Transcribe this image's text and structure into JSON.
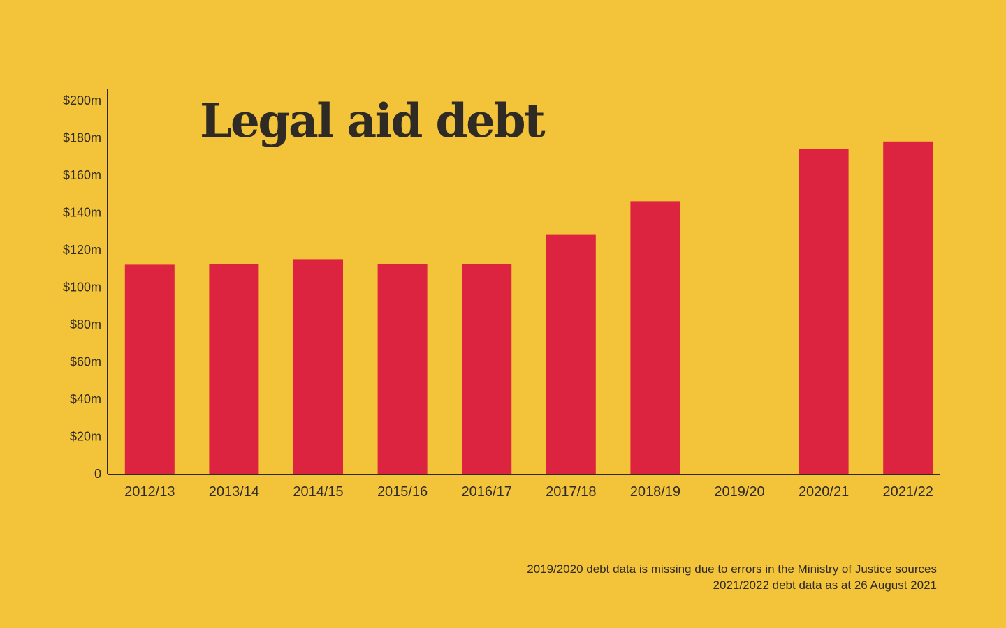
{
  "colors": {
    "background": "#f3c43a",
    "bar": "#dc2440",
    "text": "#2f2a24",
    "axis": "#2f2a24"
  },
  "chart_data": {
    "type": "bar",
    "title": "Legal aid debt",
    "xlabel": "",
    "ylabel": "",
    "categories": [
      "2012/13",
      "2013/14",
      "2014/15",
      "2015/16",
      "2016/17",
      "2017/18",
      "2018/19",
      "2019/20",
      "2020/21",
      "2021/22"
    ],
    "values": [
      112,
      112.5,
      115,
      112.5,
      112.5,
      128,
      146,
      null,
      174,
      178
    ],
    "yticks": [
      {
        "value": 0,
        "label": "0"
      },
      {
        "value": 20,
        "label": "$20m"
      },
      {
        "value": 40,
        "label": "$40m"
      },
      {
        "value": 60,
        "label": "$60m"
      },
      {
        "value": 80,
        "label": "$80m"
      },
      {
        "value": 100,
        "label": "$100m"
      },
      {
        "value": 120,
        "label": "$120m"
      },
      {
        "value": 140,
        "label": "$140m"
      },
      {
        "value": 160,
        "label": "$160m"
      },
      {
        "value": 180,
        "label": "$180m"
      },
      {
        "value": 200,
        "label": "$200m"
      }
    ],
    "ylim": [
      0,
      200
    ],
    "grid": false,
    "legend": "none"
  },
  "footnotes": [
    "2019/2020 debt data is missing due to errors in the Ministry of Justice sources",
    "2021/2022 debt data as at 26 August 2021"
  ]
}
